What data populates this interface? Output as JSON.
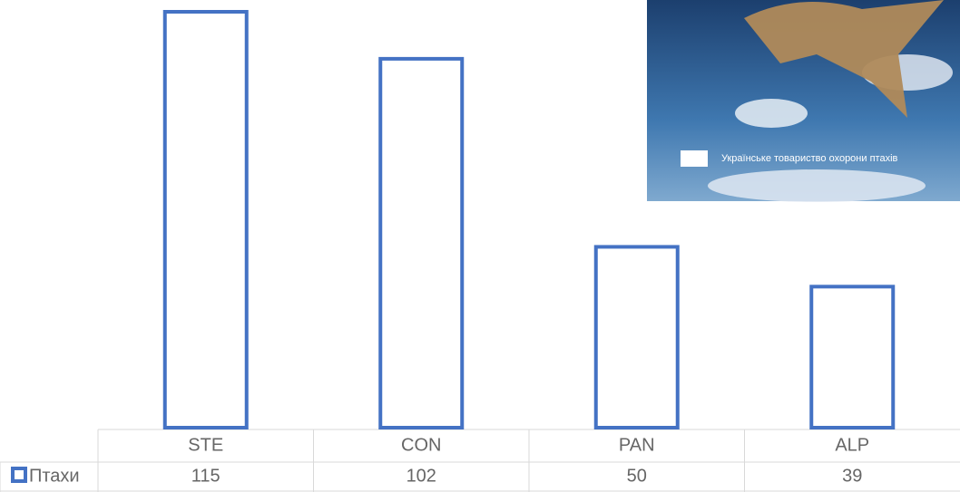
{
  "chart_data": {
    "type": "bar",
    "categories": [
      "STE",
      "CON",
      "PAN",
      "ALP"
    ],
    "series": [
      {
        "name": "Птахи",
        "color": "#4472c4",
        "values": [
          115,
          102,
          50,
          39
        ]
      }
    ]
  },
  "image_caption": "Українське товариство охорони птахів"
}
